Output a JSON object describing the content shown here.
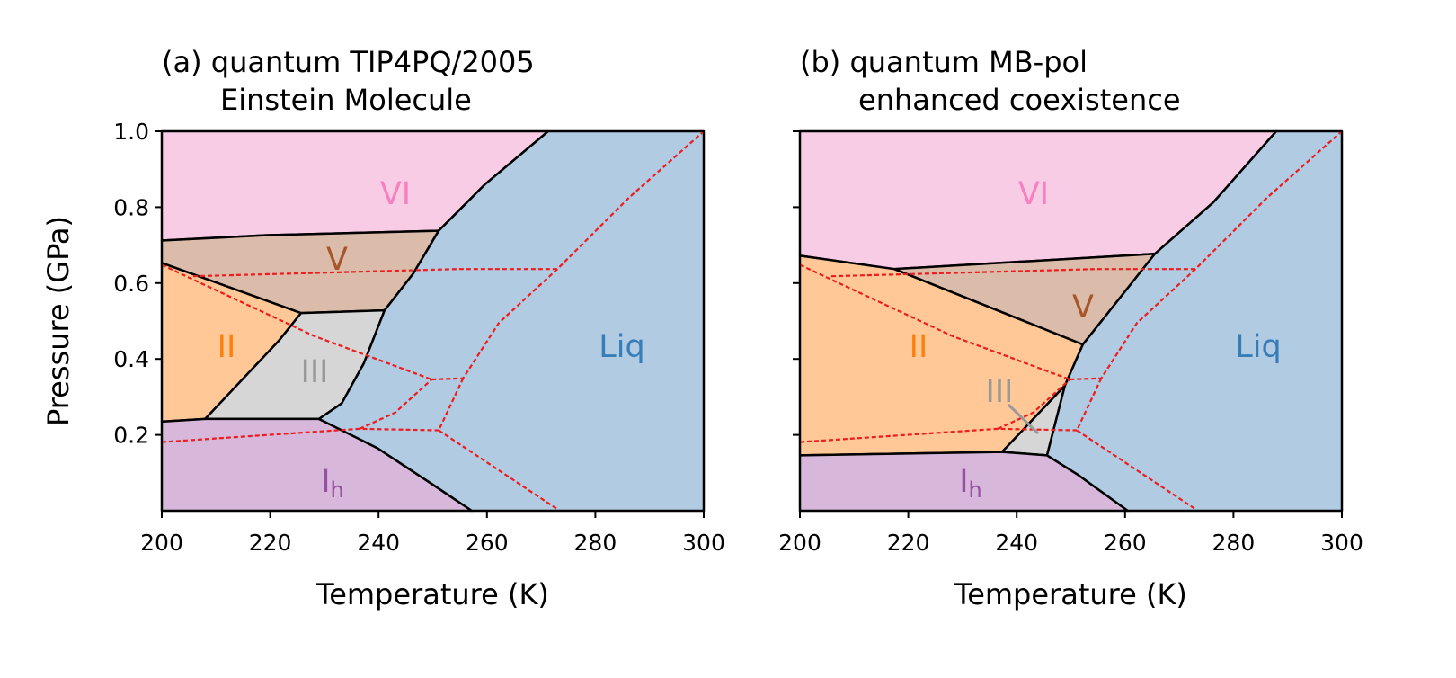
{
  "chart_data": [
    {
      "type": "phase-diagram",
      "title": [
        "(a) quantum TIP4PQ/2005",
        "Einstein Molecule"
      ],
      "xlabel": "Temperature (K)",
      "ylabel": "Pressure (GPa)",
      "xlim": [
        200,
        300
      ],
      "ylim": [
        0,
        1
      ],
      "xticks": [
        200,
        220,
        240,
        260,
        280,
        300
      ],
      "yticks": [
        0.2,
        0.4,
        0.6,
        0.8,
        {
          "value": 1,
          "label": "1.0"
        }
      ],
      "show_ytick_labels": true,
      "boundary_color": "#000000",
      "reference_color": "#ee1c1c",
      "regions": [
        {
          "label": "VI",
          "color": "#f9cce6",
          "text_color": "#f781bf",
          "x": [
            200,
            271.3,
            259.7,
            251.1,
            219.1,
            200
          ],
          "y": [
            1,
            1,
            0.861,
            0.738,
            0.726,
            0.712
          ]
        },
        {
          "label": "V",
          "color": "#dbbbaa",
          "text_color": "#a65628",
          "x": [
            200,
            219.1,
            251.1,
            246.4,
            241.1,
            225.7,
            200
          ],
          "y": [
            0.712,
            0.726,
            0.738,
            0.625,
            0.528,
            0.521,
            0.653
          ]
        },
        {
          "label": "II",
          "color": "#ffc896",
          "text_color": "#ff7f0e",
          "x": [
            200,
            225.7,
            221.6,
            208,
            200
          ],
          "y": [
            0.653,
            0.521,
            0.448,
            0.242,
            0.235
          ]
        },
        {
          "label": "III",
          "color": "#d6d6d6",
          "text_color": "#999999",
          "x": [
            225.7,
            241.1,
            237.3,
            233.2,
            229,
            208,
            221.6
          ],
          "y": [
            0.521,
            0.528,
            0.389,
            0.283,
            0.242,
            0.242,
            0.448
          ]
        },
        {
          "label": "I",
          "subscript": "h",
          "color": "#d7b8db",
          "text_color": "#984ea3",
          "x": [
            200,
            208,
            229,
            239.8,
            249.8,
            257.2,
            200
          ],
          "y": [
            0.235,
            0.242,
            0.242,
            0.165,
            0.071,
            0,
            0
          ]
        },
        {
          "label": "Liq",
          "color": "#b0cbe2",
          "text_color": "#377eb8",
          "x": [
            271.3,
            300,
            300,
            257.2,
            249.8,
            239.8,
            229,
            233.2,
            237.3,
            241.1,
            246.4,
            251.1,
            259.7
          ],
          "y": [
            1,
            1,
            0,
            0,
            0.071,
            0.165,
            0.242,
            0.283,
            0.389,
            0.528,
            0.625,
            0.738,
            0.861
          ]
        }
      ],
      "reference_lines": [
        {
          "x": [
            200,
            228.2,
            249.8
          ],
          "y": [
            0.648,
            0.46,
            0.346
          ]
        },
        {
          "x": [
            205.8,
            254.7,
            273
          ],
          "y": [
            0.618,
            0.637,
            0.637
          ]
        },
        {
          "x": [
            249.8,
            255.6,
            262.2,
            273,
            286.2,
            300
          ],
          "y": [
            0.346,
            0.349,
            0.495,
            0.637,
            0.825,
            1
          ]
        },
        {
          "x": [
            255.6,
            251.1,
            273
          ],
          "y": [
            0.349,
            0.212,
            0.004
          ]
        },
        {
          "x": [
            200,
            236.5,
            251.1
          ],
          "y": [
            0.181,
            0.216,
            0.212
          ]
        },
        {
          "x": [
            236.5,
            243.1,
            249.8
          ],
          "y": [
            0.216,
            0.259,
            0.346
          ]
        }
      ]
    },
    {
      "type": "phase-diagram",
      "title": [
        "(b) quantum MB-pol",
        "enhanced coexistence"
      ],
      "xlabel": "Temperature (K)",
      "xlim": [
        200,
        300
      ],
      "ylim": [
        0,
        1
      ],
      "xticks": [
        200,
        220,
        240,
        260,
        280,
        300
      ],
      "yticks": [
        0.2,
        0.4,
        0.6,
        0.8,
        1
      ],
      "show_ytick_labels": false,
      "boundary_color": "#000000",
      "reference_color": "#ee1c1c",
      "regions": [
        {
          "label": "VI",
          "color": "#f9cce6",
          "text_color": "#f781bf",
          "x": [
            200,
            287.9,
            276.3,
            265.5,
            217.4,
            200
          ],
          "y": [
            1,
            1,
            0.813,
            0.677,
            0.637,
            0.672
          ]
        },
        {
          "label": "V",
          "color": "#dbbbaa",
          "text_color": "#a65628",
          "x": [
            217.4,
            265.5,
            258,
            252.2
          ],
          "y": [
            0.637,
            0.677,
            0.542,
            0.438
          ]
        },
        {
          "label": "II",
          "color": "#ffc896",
          "text_color": "#ff7f0e",
          "x": [
            200,
            217.4,
            252.2,
            248.9,
            237.3,
            200
          ],
          "y": [
            0.672,
            0.637,
            0.438,
            0.33,
            0.155,
            0.146
          ]
        },
        {
          "label": "III",
          "color": "#d6d6d6",
          "text_color": "#999999",
          "x": [
            248.9,
            245.6,
            237.3
          ],
          "y": [
            0.33,
            0.146,
            0.155
          ]
        },
        {
          "label": "I",
          "subscript": "h",
          "color": "#d7b8db",
          "text_color": "#984ea3",
          "x": [
            200,
            237.3,
            245.6,
            251.4,
            260.5,
            200
          ],
          "y": [
            0.146,
            0.155,
            0.146,
            0.094,
            0,
            0
          ]
        },
        {
          "label": "Liq",
          "color": "#b0cbe2",
          "text_color": "#377eb8",
          "x": [
            287.9,
            300,
            300,
            260.5,
            251.4,
            245.6,
            248.9,
            252.2,
            258,
            265.5,
            276.3
          ],
          "y": [
            1,
            1,
            0,
            0,
            0.094,
            0.146,
            0.33,
            0.438,
            0.542,
            0.677,
            0.813
          ]
        }
      ],
      "reference_lines": [
        {
          "x": [
            200,
            228.2,
            249.8
          ],
          "y": [
            0.648,
            0.46,
            0.346
          ]
        },
        {
          "x": [
            205.8,
            254.7,
            273
          ],
          "y": [
            0.618,
            0.637,
            0.637
          ]
        },
        {
          "x": [
            249.8,
            255.6,
            262.2,
            273,
            286.2,
            300
          ],
          "y": [
            0.346,
            0.349,
            0.495,
            0.637,
            0.825,
            1
          ]
        },
        {
          "x": [
            255.6,
            251.1,
            273
          ],
          "y": [
            0.349,
            0.212,
            0.004
          ]
        },
        {
          "x": [
            200,
            236.5,
            251.1
          ],
          "y": [
            0.181,
            0.216,
            0.212
          ]
        },
        {
          "x": [
            236.5,
            243.1,
            249.8
          ],
          "y": [
            0.216,
            0.259,
            0.346
          ]
        }
      ]
    }
  ]
}
